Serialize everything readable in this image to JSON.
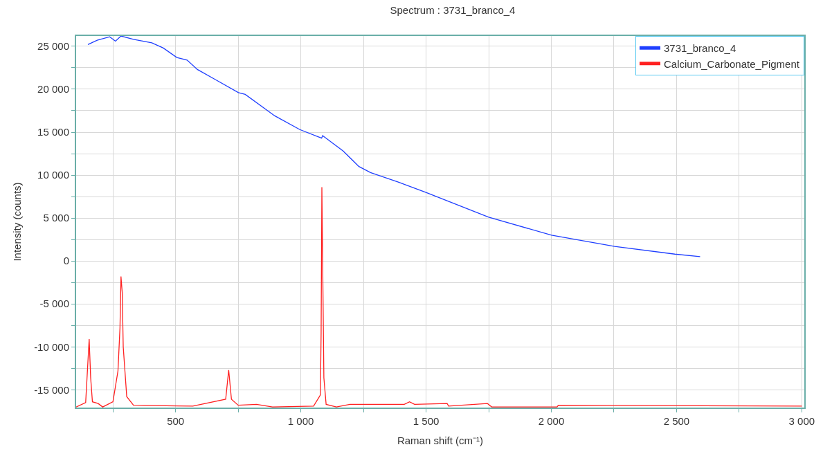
{
  "chart_data": {
    "type": "line",
    "title": "Spectrum : 3731_branco_4",
    "xlabel": "Raman shift (cm⁻¹)",
    "ylabel": "Intensity (counts)",
    "xlim": [
      103,
      3010
    ],
    "ylim": [
      -17070,
      26200
    ],
    "xticks": [
      {
        "value": 250,
        "label": null
      },
      {
        "value": 500,
        "label": "500"
      },
      {
        "value": 750,
        "label": null
      },
      {
        "value": 1000,
        "label": "1 000"
      },
      {
        "value": 1250,
        "label": null
      },
      {
        "value": 1500,
        "label": "1 500"
      },
      {
        "value": 1750,
        "label": null
      },
      {
        "value": 2000,
        "label": "2 000"
      },
      {
        "value": 2250,
        "label": null
      },
      {
        "value": 2500,
        "label": "2 500"
      },
      {
        "value": 2750,
        "label": null
      },
      {
        "value": 3000,
        "label": "3 000"
      }
    ],
    "yticks": [
      {
        "value": -15000,
        "label": "-15 000"
      },
      {
        "value": -12500,
        "label": null
      },
      {
        "value": -10000,
        "label": "-10 000"
      },
      {
        "value": -7500,
        "label": null
      },
      {
        "value": -5000,
        "label": "-5 000"
      },
      {
        "value": -2500,
        "label": null
      },
      0,
      {
        "value": 2500,
        "label": null
      },
      {
        "value": 5000,
        "label": "5 000"
      },
      {
        "value": 7500,
        "label": null
      },
      {
        "value": 10000,
        "label": "10 000"
      },
      {
        "value": 12500,
        "label": null
      },
      {
        "value": 15000,
        "label": "15 000"
      },
      {
        "value": 17500,
        "label": null
      },
      {
        "value": 20000,
        "label": "20 000"
      },
      {
        "value": 22500,
        "label": null
      },
      {
        "value": 25000,
        "label": "25 000"
      }
    ],
    "grid": true,
    "legend": "top right",
    "marker": "none",
    "line_style": "solid",
    "series": [
      {
        "name": "3731_branco_4",
        "color": "#1f3fff",
        "x": [
          150,
          187,
          237,
          260,
          282,
          332,
          405,
          451,
          505,
          546,
          587,
          660,
          751,
          778,
          896,
          996,
          1083,
          1087,
          1169,
          1232,
          1278,
          1387,
          1498,
          1750,
          2001,
          2253,
          2493,
          2594
        ],
        "values": [
          25200,
          25700,
          26100,
          25600,
          26200,
          25800,
          25400,
          24800,
          23700,
          23400,
          22300,
          21100,
          19600,
          19400,
          16900,
          15300,
          14300,
          14600,
          12800,
          11000,
          10300,
          9200,
          8000,
          5100,
          3000,
          1700,
          800,
          500
        ]
      },
      {
        "name": "Calcium_Carbonate_Pigment",
        "color": "#ff2020",
        "x": [
          103,
          141,
          155,
          161,
          168,
          191,
          209,
          250,
          270,
          278,
          282,
          287,
          291,
          305,
          332,
          569,
          700,
          712,
          723,
          750,
          823,
          887,
          1051,
          1078,
          1081,
          1084,
          1092,
          1101,
          1142,
          1196,
          1387,
          1413,
          1434,
          1454,
          1584,
          1590,
          1745,
          1762,
          2023,
          2028,
          3000
        ],
        "values": [
          -17000,
          -16500,
          -9100,
          -13600,
          -16400,
          -16600,
          -17000,
          -16400,
          -12800,
          -7800,
          -1800,
          -3700,
          -10000,
          -15800,
          -16800,
          -16900,
          -16100,
          -12700,
          -16100,
          -16800,
          -16700,
          -17000,
          -16900,
          -15600,
          -8400,
          8600,
          -13600,
          -16700,
          -17000,
          -16700,
          -16700,
          -16700,
          -16400,
          -16700,
          -16600,
          -16900,
          -16600,
          -17000,
          -17000,
          -16800,
          -16900
        ]
      }
    ]
  }
}
